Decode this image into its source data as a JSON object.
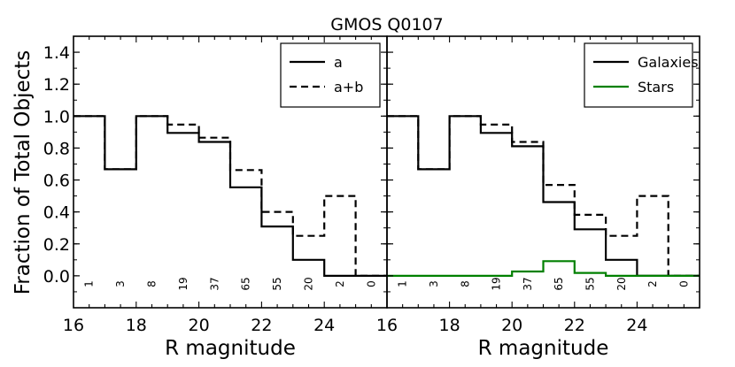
{
  "chart_data": {
    "type": "line",
    "title": "GMOS Q0107",
    "ylabel": "Fraction of Total Objects",
    "ylim": [
      -0.2,
      1.5
    ],
    "yticks": [
      "0.0",
      "0.2",
      "0.4",
      "0.6",
      "0.8",
      "1.0",
      "1.2",
      "1.4"
    ],
    "ytick_values": [
      0.0,
      0.2,
      0.4,
      0.6,
      0.8,
      1.0,
      1.2,
      1.4
    ],
    "panels": [
      {
        "xlabel": "R magnitude",
        "xlim": [
          16,
          26
        ],
        "xticks": [
          "16",
          "18",
          "20",
          "22",
          "24"
        ],
        "xtick_values": [
          16,
          18,
          20,
          22,
          24
        ],
        "bin_edges": [
          16,
          17,
          18,
          19,
          20,
          21,
          22,
          23,
          24,
          25,
          26
        ],
        "counts": [
          "1",
          "3",
          "8",
          "19",
          "37",
          "65",
          "55",
          "20",
          "2",
          "0"
        ],
        "legend_position": "top-right",
        "series": [
          {
            "name": "a",
            "style": "solid",
            "color": "#000000",
            "values": [
              1.0,
              0.667,
              1.0,
              0.895,
              0.838,
              0.554,
              0.309,
              0.1,
              0.0,
              0.0
            ]
          },
          {
            "name": "a+b",
            "style": "dashed",
            "color": "#000000",
            "values": [
              1.0,
              0.667,
              1.0,
              0.947,
              0.865,
              0.662,
              0.4,
              0.25,
              0.5,
              0.0
            ]
          }
        ]
      },
      {
        "xlabel": "R magnitude",
        "xlim": [
          16,
          26
        ],
        "xticks": [
          "16",
          "18",
          "20",
          "22",
          "24"
        ],
        "xtick_values": [
          16,
          18,
          20,
          22,
          24
        ],
        "bin_edges": [
          16,
          17,
          18,
          19,
          20,
          21,
          22,
          23,
          24,
          25,
          26
        ],
        "counts": [
          "1",
          "3",
          "8",
          "19",
          "37",
          "65",
          "55",
          "20",
          "2",
          "0"
        ],
        "legend_position": "top-right",
        "series": [
          {
            "name": "Galaxies",
            "style": "solid",
            "color": "#000000",
            "values": [
              1.0,
              0.667,
              1.0,
              0.895,
              0.811,
              0.462,
              0.291,
              0.1,
              0.0,
              0.0
            ]
          },
          {
            "name": "",
            "style": "dashed",
            "color": "#000000",
            "values": [
              1.0,
              0.667,
              1.0,
              0.947,
              0.838,
              0.569,
              0.382,
              0.25,
              0.5,
              0.0
            ]
          },
          {
            "name": "Stars",
            "style": "solid",
            "color": "#008000",
            "values": [
              0.0,
              0.0,
              0.0,
              0.0,
              0.027,
              0.092,
              0.018,
              0.0,
              0.0,
              0.0
            ]
          }
        ]
      }
    ]
  }
}
